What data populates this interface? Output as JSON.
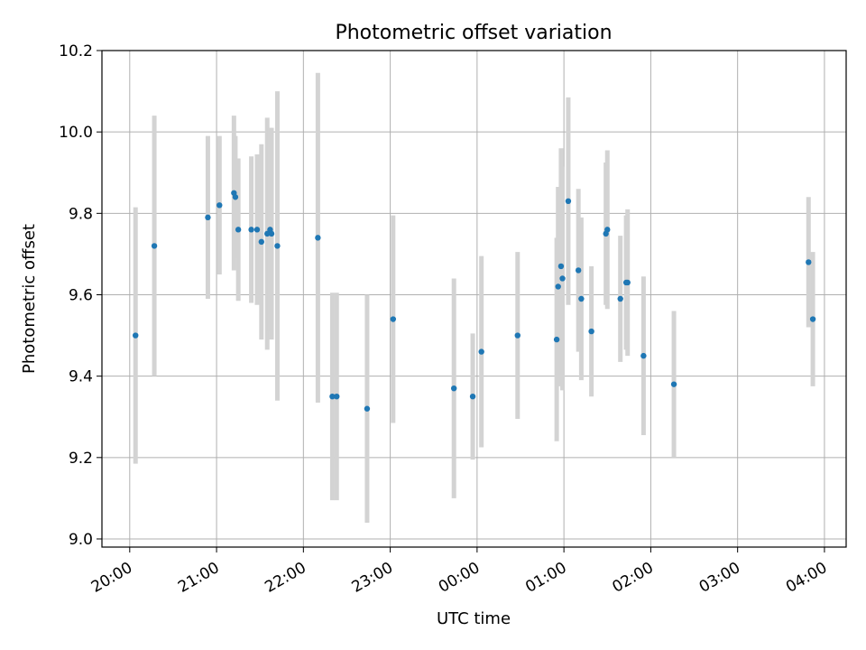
{
  "chart_data": {
    "type": "scatter",
    "title": "Photometric offset variation",
    "xlabel": "UTC time",
    "ylabel": "Photometric offset",
    "x_ticks": [
      "20:00",
      "21:00",
      "22:00",
      "23:00",
      "00:00",
      "01:00",
      "02:00",
      "03:00",
      "04:00"
    ],
    "x_tick_hours": [
      20,
      21,
      22,
      23,
      24,
      25,
      26,
      27,
      28
    ],
    "y_ticks": [
      "9.0",
      "9.2",
      "9.4",
      "9.6",
      "9.8",
      "10.0",
      "10.2"
    ],
    "ylim": [
      8.98,
      10.2
    ],
    "xlim_hours": [
      19.68,
      28.25
    ],
    "grid": true,
    "colors": {
      "point": "#1f77b4",
      "errorbar": "#d3d3d3",
      "grid": "#b0b0b0"
    },
    "points": [
      {
        "t": "20:04",
        "y": 9.5,
        "err": 0.315
      },
      {
        "t": "20:17",
        "y": 9.72,
        "err": 0.32
      },
      {
        "t": "20:54",
        "y": 9.79,
        "err": 0.2
      },
      {
        "t": "21:02",
        "y": 9.82,
        "err": 0.17
      },
      {
        "t": "21:12",
        "y": 9.85,
        "err": 0.19
      },
      {
        "t": "21:13",
        "y": 9.84,
        "err": 0.15
      },
      {
        "t": "21:15",
        "y": 9.76,
        "err": 0.175
      },
      {
        "t": "21:24",
        "y": 9.76,
        "err": 0.18
      },
      {
        "t": "21:28",
        "y": 9.76,
        "err": 0.185
      },
      {
        "t": "21:31",
        "y": 9.73,
        "err": 0.24
      },
      {
        "t": "21:35",
        "y": 9.75,
        "err": 0.285
      },
      {
        "t": "21:37",
        "y": 9.76,
        "err": 0.25
      },
      {
        "t": "21:38",
        "y": 9.75,
        "err": 0.26
      },
      {
        "t": "21:42",
        "y": 9.72,
        "err": 0.38
      },
      {
        "t": "22:10",
        "y": 9.74,
        "err": 0.405
      },
      {
        "t": "22:20",
        "y": 9.35,
        "err": 0.255
      },
      {
        "t": "22:23",
        "y": 9.35,
        "err": 0.255
      },
      {
        "t": "22:44",
        "y": 9.32,
        "err": 0.28
      },
      {
        "t": "23:02",
        "y": 9.54,
        "err": 0.255
      },
      {
        "t": "23:44",
        "y": 9.37,
        "err": 0.27
      },
      {
        "t": "23:57",
        "y": 9.35,
        "err": 0.155
      },
      {
        "t": "00:03",
        "y": 9.46,
        "err": 0.235
      },
      {
        "t": "00:28",
        "y": 9.5,
        "err": 0.205
      },
      {
        "t": "00:55",
        "y": 9.49,
        "err": 0.25
      },
      {
        "t": "00:56",
        "y": 9.62,
        "err": 0.245
      },
      {
        "t": "00:58",
        "y": 9.67,
        "err": 0.29
      },
      {
        "t": "00:59",
        "y": 9.64,
        "err": 0.275
      },
      {
        "t": "01:03",
        "y": 9.83,
        "err": 0.255
      },
      {
        "t": "01:10",
        "y": 9.66,
        "err": 0.2
      },
      {
        "t": "01:12",
        "y": 9.59,
        "err": 0.2
      },
      {
        "t": "01:19",
        "y": 9.51,
        "err": 0.16
      },
      {
        "t": "01:29",
        "y": 9.75,
        "err": 0.175
      },
      {
        "t": "01:30",
        "y": 9.76,
        "err": 0.195
      },
      {
        "t": "01:39",
        "y": 9.59,
        "err": 0.155
      },
      {
        "t": "01:43",
        "y": 9.63,
        "err": 0.165
      },
      {
        "t": "01:44",
        "y": 9.63,
        "err": 0.18
      },
      {
        "t": "01:55",
        "y": 9.45,
        "err": 0.195
      },
      {
        "t": "02:16",
        "y": 9.38,
        "err": 0.18
      },
      {
        "t": "03:49",
        "y": 9.68,
        "err": 0.16
      },
      {
        "t": "03:52",
        "y": 9.54,
        "err": 0.165
      }
    ]
  }
}
